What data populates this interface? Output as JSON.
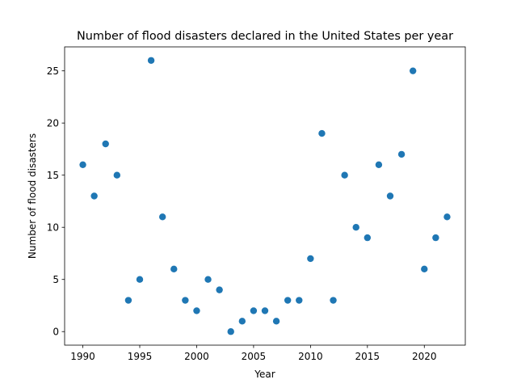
{
  "chart_data": {
    "type": "scatter",
    "title": "Number of flood disasters declared in the United States per year",
    "xlabel": "Year",
    "ylabel": "Number of flood disasters",
    "xlim": [
      1988.4,
      2023.6
    ],
    "ylim": [
      -1.3,
      27.3
    ],
    "xticks": [
      1990,
      1995,
      2000,
      2005,
      2010,
      2015,
      2020
    ],
    "yticks": [
      0,
      5,
      10,
      15,
      20,
      25
    ],
    "grid": false,
    "marker_color": "#1f77b4",
    "series": [
      {
        "x": [
          1990,
          1991,
          1992,
          1993,
          1994,
          1995,
          1996,
          1997,
          1998,
          1999,
          2000,
          2001,
          2002,
          2003,
          2004,
          2005,
          2006,
          2007,
          2008,
          2009,
          2010,
          2011,
          2012,
          2013,
          2014,
          2015,
          2016,
          2017,
          2018,
          2019,
          2020,
          2021,
          2022
        ],
        "y": [
          16,
          13,
          18,
          15,
          3,
          5,
          26,
          11,
          6,
          3,
          2,
          5,
          4,
          0,
          1,
          2,
          2,
          1,
          3,
          3,
          7,
          19,
          3,
          15,
          10,
          9,
          16,
          13,
          17,
          25,
          6,
          9,
          11
        ]
      }
    ]
  }
}
